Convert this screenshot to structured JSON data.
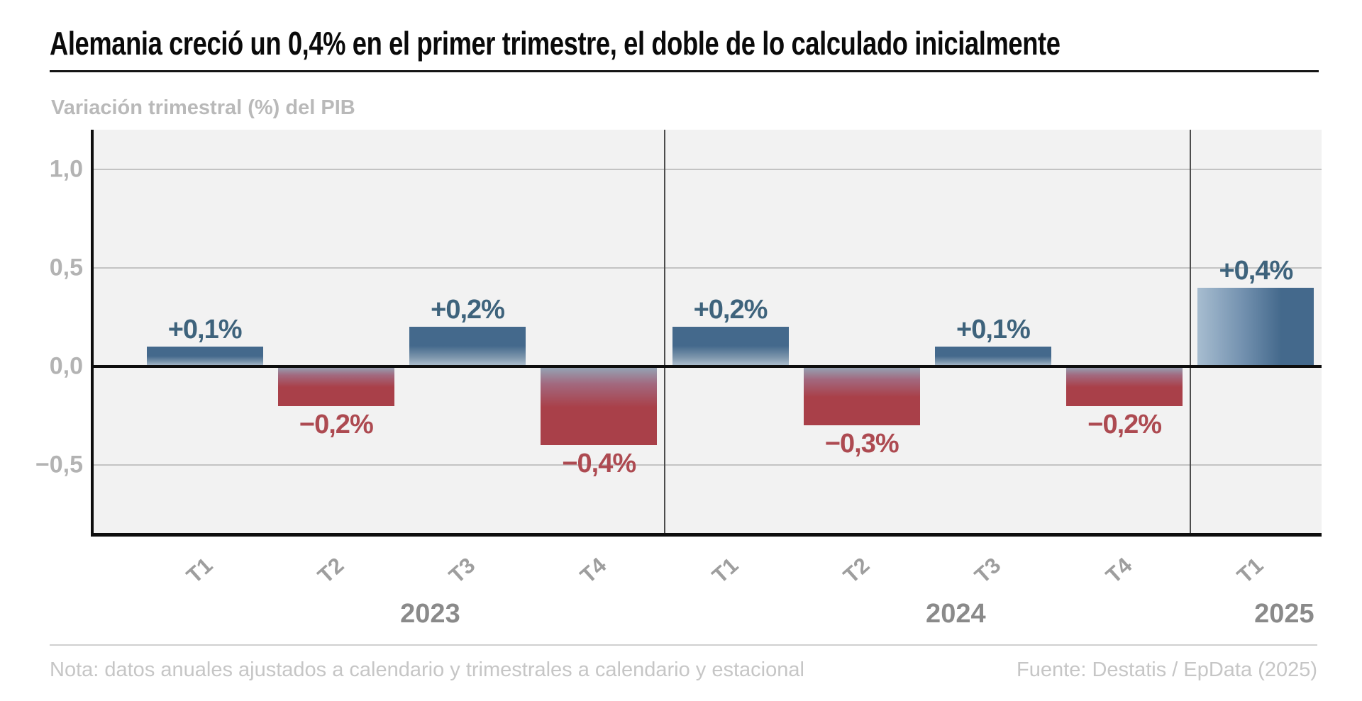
{
  "header": {
    "title": "Alemania creció un 0,4% en el primer trimestre, el doble de lo calculado inicialmente",
    "subtitle": "Variación trimestral (%) del PIB"
  },
  "footer": {
    "note": "Nota: datos anuales ajustados a calendario y trimestrales a calendario y estacional",
    "source": "Fuente: Destatis / EpData (2025)"
  },
  "chart_data": {
    "type": "bar",
    "title": "Alemania creció un 0,4% en el primer trimestre, el doble de lo calculado inicialmente",
    "ylabel": "Variación trimestral (%) del PIB",
    "xlabel": "",
    "categories": [
      "T1",
      "T2",
      "T3",
      "T4",
      "T1",
      "T2",
      "T3",
      "T4",
      "T1"
    ],
    "year_groups": [
      {
        "label": "2023",
        "from": 0,
        "to": 3
      },
      {
        "label": "2024",
        "from": 4,
        "to": 7
      },
      {
        "label": "2025",
        "from": 8,
        "to": 8
      }
    ],
    "values": [
      0.1,
      -0.2,
      0.2,
      -0.4,
      0.2,
      -0.3,
      0.1,
      -0.2,
      0.4
    ],
    "bar_labels": [
      "+0,1%",
      "−0,2%",
      "+0,2%",
      "−0,4%",
      "+0,2%",
      "−0,3%",
      "+0,1%",
      "−0,2%",
      "+0,4%"
    ],
    "y_ticks": [
      {
        "value": 1.0,
        "label": "1,0"
      },
      {
        "value": 0.5,
        "label": "0,5"
      },
      {
        "value": 0.0,
        "label": "0,0"
      },
      {
        "value": -0.5,
        "label": "−0,5"
      }
    ],
    "ylim": [
      -0.85,
      1.2
    ],
    "grid": true,
    "legend": "none",
    "highlight_index": 8,
    "colors": {
      "positive": "#44698c",
      "positive_fade": "#b3c3d2",
      "positive_mid": "#7e97ad",
      "negative": "#a94049",
      "negative_fade": "#93a7b8",
      "negative_mid": "#a2697f",
      "highlight_fade": "#a7bdd0",
      "highlight_mid": "#7492b0",
      "positive_label": "#3e637c",
      "negative_label": "#ad4a51"
    }
  }
}
